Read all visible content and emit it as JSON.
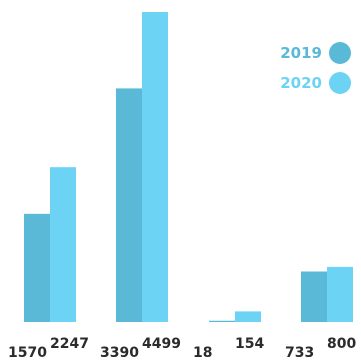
{
  "chart_data": {
    "type": "bar",
    "categories": [
      "",
      "",
      "",
      ""
    ],
    "series": [
      {
        "name": "2019",
        "values": [
          1570,
          3390,
          18,
          733
        ],
        "color": "#5bb9d8"
      },
      {
        "name": "2020",
        "values": [
          2247,
          4499,
          154,
          800
        ],
        "color": "#6dd3f5"
      }
    ],
    "value_labels": [
      {
        "2019": "1570",
        "2020": "2247"
      },
      {
        "2019": "3390",
        "2020": "4499"
      },
      {
        "2019": "18",
        "2020": "154"
      },
      {
        "2019": "733",
        "2020": "800"
      }
    ],
    "ylim": [
      0,
      4499
    ],
    "grid": false,
    "legend_position": "top-right",
    "title": "",
    "xlabel": "",
    "ylabel": ""
  }
}
